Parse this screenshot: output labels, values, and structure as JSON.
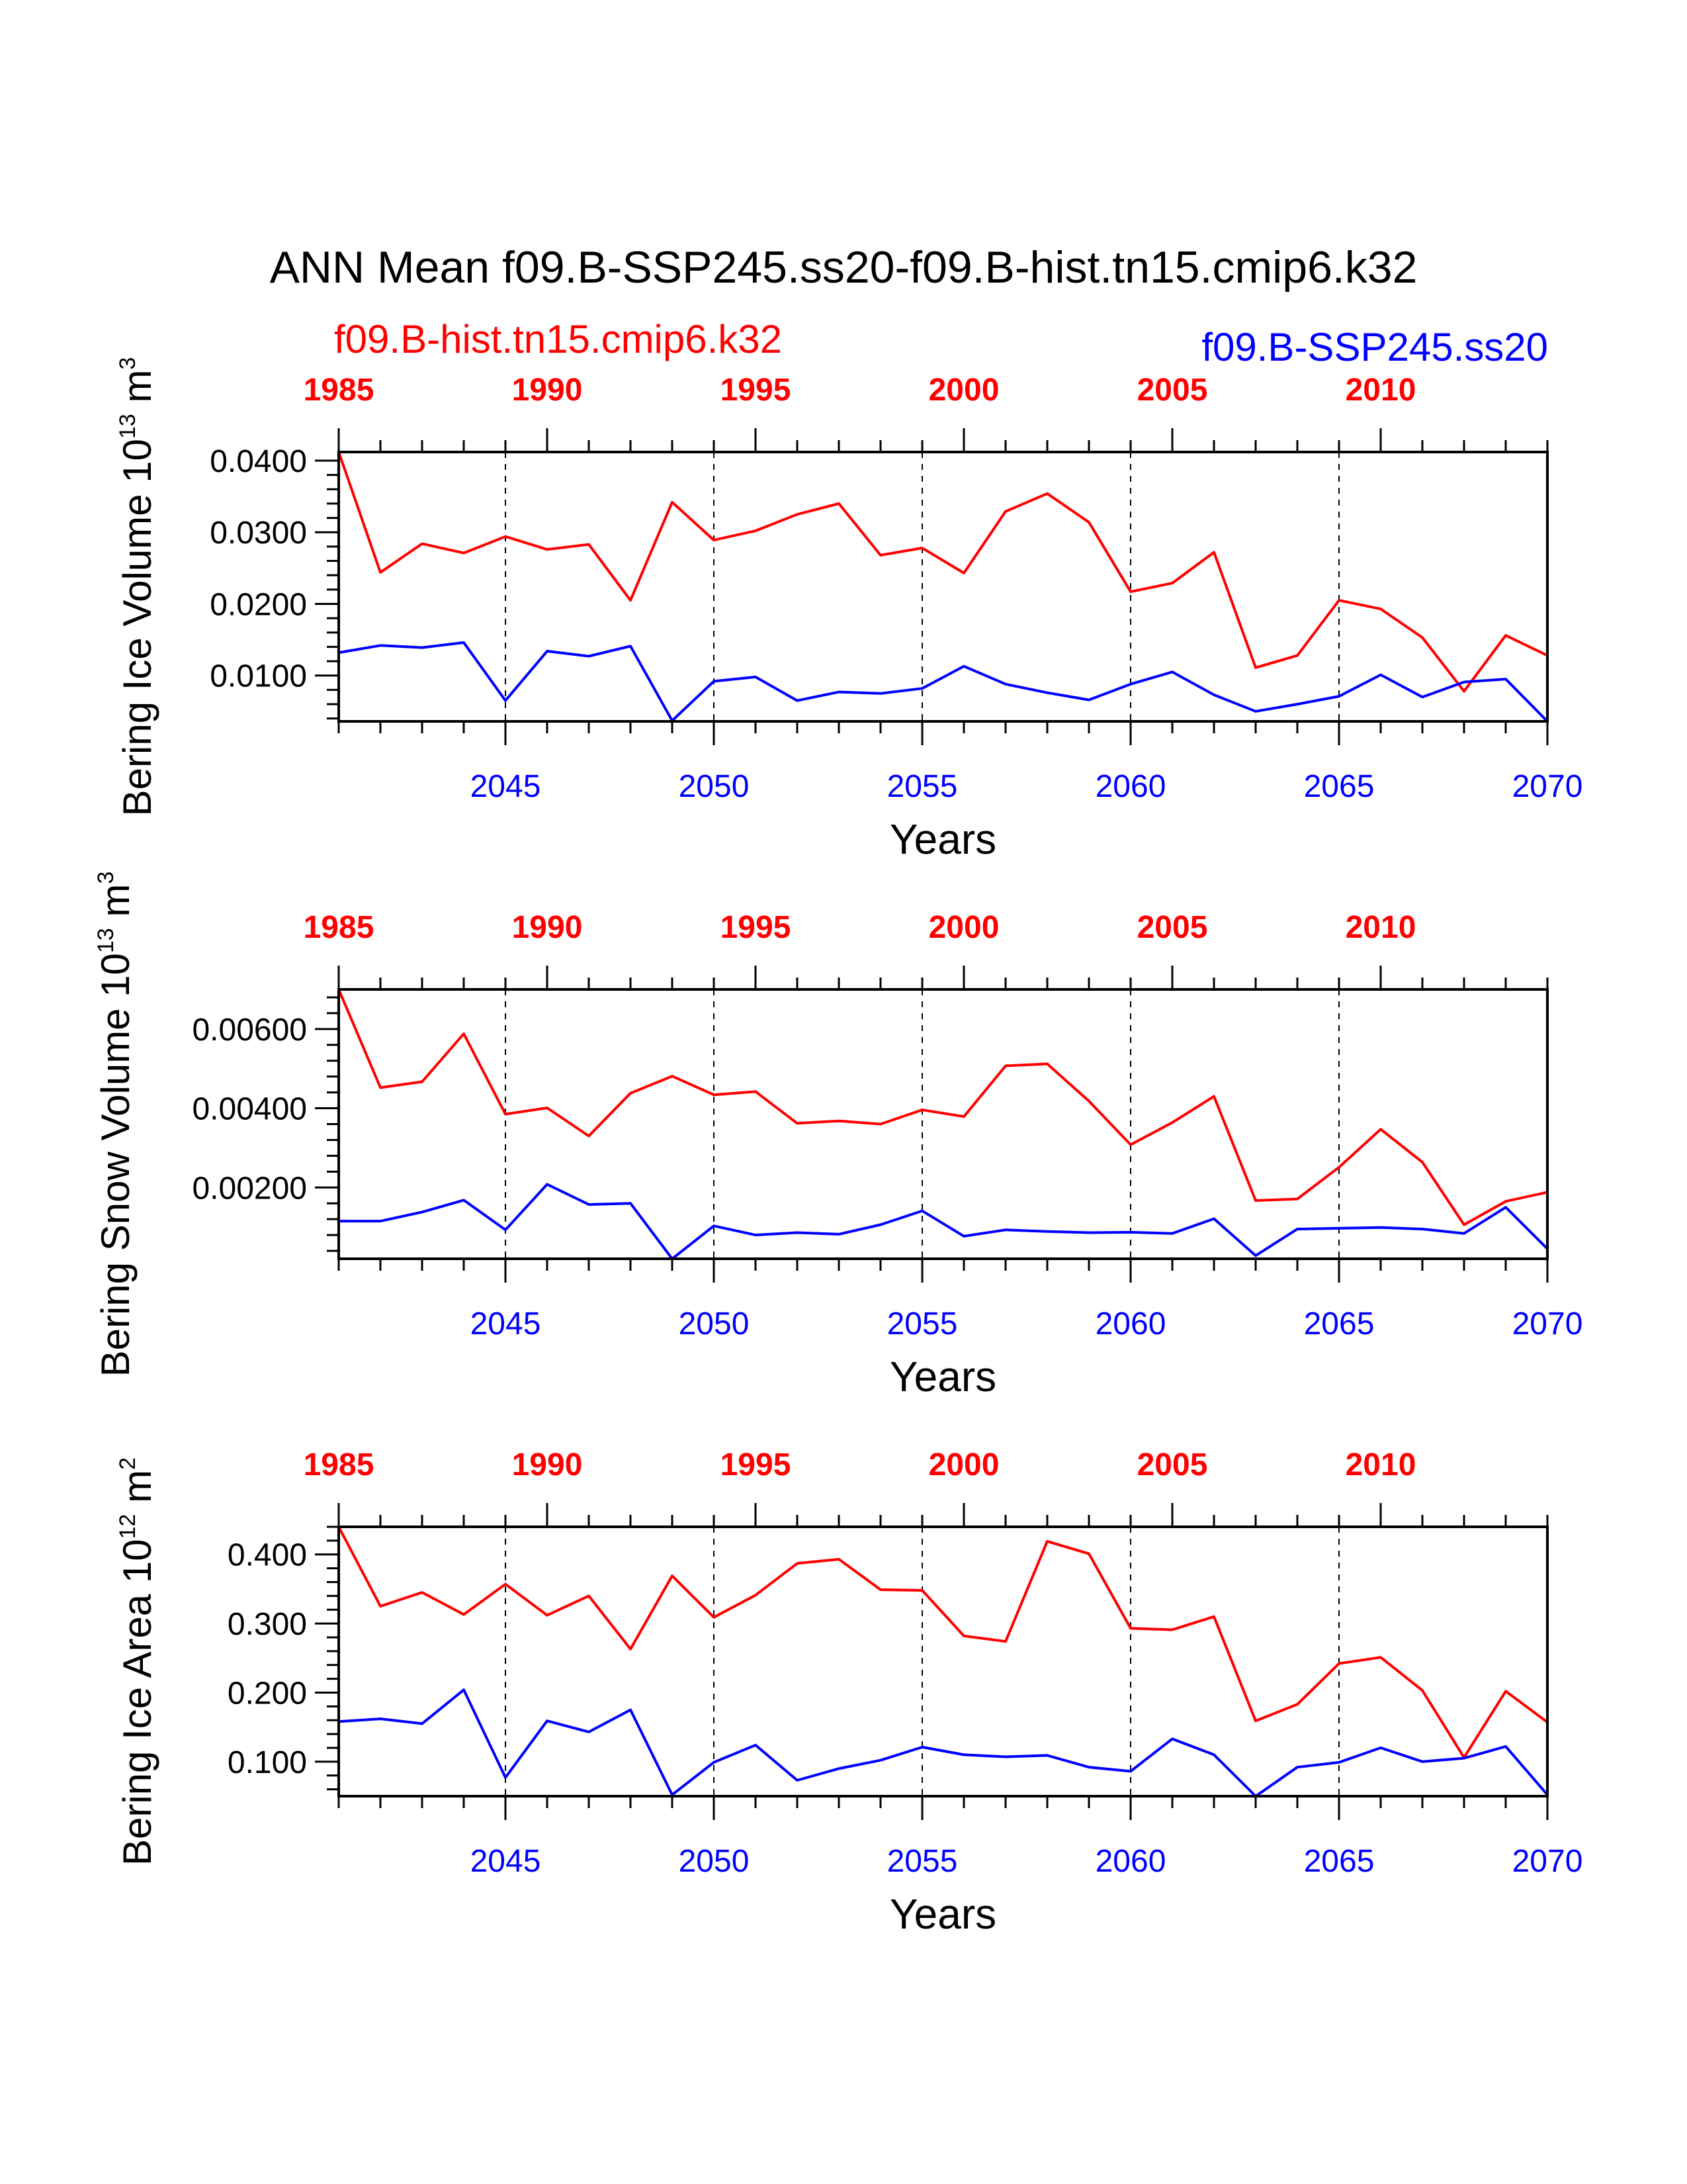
{
  "figure": {
    "title": "ANN Mean f09.B-SSP245.ss20-f09.B-hist.tn15.cmip6.k32",
    "left_label": "f09.B-hist.tn15.cmip6.k32",
    "right_label": "f09.B-SSP245.ss20",
    "xlabel": "Years",
    "top_ticks": [
      "1985",
      "1990",
      "1995",
      "2000",
      "2005",
      "2010"
    ],
    "bottom_ticks": [
      "2045",
      "2050",
      "2055",
      "2060",
      "2065",
      "2070"
    ]
  },
  "colors": {
    "hist": "#ff0000",
    "ssp": "#0000ff",
    "frame": "#000000"
  },
  "chart_data": [
    {
      "type": "line",
      "ylabel": "Bering Ice Volume",
      "unit_base": "10",
      "unit_exp": "13",
      "unit_tail": "m",
      "unit_tail_exp": "3",
      "ylim": [
        0.0036,
        0.0412
      ],
      "yticks": [
        "0.0400",
        "0.0300",
        "0.0200",
        "0.0100"
      ],
      "ytick_values": [
        0.04,
        0.03,
        0.02,
        0.01
      ],
      "x_top": [
        1985,
        1986,
        1987,
        1988,
        1989,
        1990,
        1991,
        1992,
        1993,
        1994,
        1995,
        1996,
        1997,
        1998,
        1999,
        2000,
        2001,
        2002,
        2003,
        2004,
        2005,
        2006,
        2007,
        2008,
        2009,
        2010,
        2011,
        2012,
        2013,
        2014
      ],
      "x_bottom": [
        2041,
        2042,
        2043,
        2044,
        2045,
        2046,
        2047,
        2048,
        2049,
        2050,
        2051,
        2052,
        2053,
        2054,
        2055,
        2056,
        2057,
        2058,
        2059,
        2060,
        2061,
        2062,
        2063,
        2064,
        2065,
        2066,
        2067,
        2068,
        2069,
        2070
      ],
      "series": [
        {
          "name": "f09.B-hist.tn15.cmip6.k32",
          "values": [
            0.0412,
            0.0244,
            0.0284,
            0.0271,
            0.0294,
            0.0276,
            0.0283,
            0.0205,
            0.0342,
            0.0289,
            0.0302,
            0.0325,
            0.034,
            0.0268,
            0.0278,
            0.0243,
            0.0329,
            0.0354,
            0.0314,
            0.0217,
            0.0229,
            0.0272,
            0.0111,
            0.0128,
            0.0205,
            0.0193,
            0.0153,
            0.0078,
            0.0156,
            0.0128
          ]
        },
        {
          "name": "f09.B-SSP245.ss20",
          "values": [
            0.0132,
            0.0142,
            0.0139,
            0.0146,
            0.0065,
            0.0134,
            0.0127,
            0.0141,
            0.0037,
            0.0092,
            0.0098,
            0.0065,
            0.0077,
            0.0075,
            0.0082,
            0.0113,
            0.0088,
            0.0076,
            0.0066,
            0.0088,
            0.0105,
            0.0073,
            0.005,
            0.006,
            0.0071,
            0.0101,
            0.007,
            0.0091,
            0.0095,
            0.0036
          ]
        }
      ]
    },
    {
      "type": "line",
      "ylabel": "Bering Snow Volume",
      "unit_base": "10",
      "unit_exp": "13",
      "unit_tail": "m",
      "unit_tail_exp": "3",
      "ylim": [
        0.0002,
        0.007
      ],
      "yticks": [
        "0.00600",
        "0.00400",
        "0.00200"
      ],
      "ytick_values": [
        0.006,
        0.004,
        0.002
      ],
      "x_top": [
        1985,
        1986,
        1987,
        1988,
        1989,
        1990,
        1991,
        1992,
        1993,
        1994,
        1995,
        1996,
        1997,
        1998,
        1999,
        2000,
        2001,
        2002,
        2003,
        2004,
        2005,
        2006,
        2007,
        2008,
        2009,
        2010,
        2011,
        2012,
        2013,
        2014
      ],
      "x_bottom": [
        2041,
        2042,
        2043,
        2044,
        2045,
        2046,
        2047,
        2048,
        2049,
        2050,
        2051,
        2052,
        2053,
        2054,
        2055,
        2056,
        2057,
        2058,
        2059,
        2060,
        2061,
        2062,
        2063,
        2064,
        2065,
        2066,
        2067,
        2068,
        2069,
        2070
      ],
      "series": [
        {
          "name": "f09.B-hist.tn15.cmip6.k32",
          "values": [
            0.007,
            0.00452,
            0.00467,
            0.00588,
            0.00385,
            0.00401,
            0.0033,
            0.00438,
            0.00481,
            0.00434,
            0.00442,
            0.00362,
            0.00368,
            0.0036,
            0.00396,
            0.00379,
            0.00507,
            0.00512,
            0.00418,
            0.00308,
            0.00364,
            0.0043,
            0.00167,
            0.00171,
            0.00251,
            0.00347,
            0.00264,
            0.00106,
            0.00165,
            0.00188
          ]
        },
        {
          "name": "f09.B-SSP245.ss20",
          "values": [
            0.00115,
            0.00115,
            0.00138,
            0.00168,
            0.00093,
            0.00208,
            0.00157,
            0.0016,
            0.0002,
            0.00103,
            0.0008,
            0.00086,
            0.00082,
            0.00106,
            0.00141,
            0.00077,
            0.00093,
            0.00089,
            0.00086,
            0.00087,
            0.00084,
            0.00121,
            0.00028,
            0.00095,
            0.00097,
            0.00099,
            0.00095,
            0.00084,
            0.0015,
            0.00045
          ]
        }
      ]
    },
    {
      "type": "line",
      "ylabel": "Bering Ice Area",
      "unit_base": "10",
      "unit_exp": "12",
      "unit_tail": "m",
      "unit_tail_exp": "2",
      "ylim": [
        0.05,
        0.44
      ],
      "yticks": [
        "0.400",
        "0.300",
        "0.200",
        "0.100"
      ],
      "ytick_values": [
        0.4,
        0.3,
        0.2,
        0.1
      ],
      "x_top": [
        1985,
        1986,
        1987,
        1988,
        1989,
        1990,
        1991,
        1992,
        1993,
        1994,
        1995,
        1996,
        1997,
        1998,
        1999,
        2000,
        2001,
        2002,
        2003,
        2004,
        2005,
        2006,
        2007,
        2008,
        2009,
        2010,
        2011,
        2012,
        2013,
        2014
      ],
      "x_bottom": [
        2041,
        2042,
        2043,
        2044,
        2045,
        2046,
        2047,
        2048,
        2049,
        2050,
        2051,
        2052,
        2053,
        2054,
        2055,
        2056,
        2057,
        2058,
        2059,
        2060,
        2061,
        2062,
        2063,
        2064,
        2065,
        2066,
        2067,
        2068,
        2069,
        2070
      ],
      "series": [
        {
          "name": "f09.B-hist.tn15.cmip6.k32",
          "values": [
            0.44,
            0.325,
            0.345,
            0.313,
            0.357,
            0.312,
            0.34,
            0.263,
            0.369,
            0.309,
            0.341,
            0.387,
            0.393,
            0.349,
            0.348,
            0.282,
            0.274,
            0.419,
            0.401,
            0.293,
            0.291,
            0.31,
            0.159,
            0.183,
            0.242,
            0.251,
            0.203,
            0.106,
            0.202,
            0.157
          ]
        },
        {
          "name": "f09.B-SSP245.ss20",
          "values": [
            0.158,
            0.162,
            0.155,
            0.204,
            0.077,
            0.159,
            0.143,
            0.175,
            0.052,
            0.099,
            0.124,
            0.073,
            0.09,
            0.102,
            0.121,
            0.11,
            0.107,
            0.109,
            0.092,
            0.086,
            0.133,
            0.11,
            0.05,
            0.092,
            0.099,
            0.12,
            0.1,
            0.105,
            0.122,
            0.052
          ]
        }
      ]
    }
  ]
}
